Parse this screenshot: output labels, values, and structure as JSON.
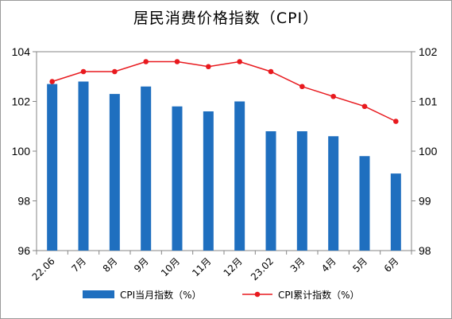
{
  "chart_data": {
    "type": "bar+line",
    "title": "居民消费价格指数（CPI）",
    "categories": [
      "22.06",
      "7月",
      "8月",
      "9月",
      "10月",
      "11月",
      "12月",
      "23.02",
      "3月",
      "4月",
      "5月",
      "6月"
    ],
    "series": [
      {
        "name": "CPI当月指数（%）",
        "type": "bar",
        "axis": "left",
        "color": "#1f6fbf",
        "values": [
          102.7,
          102.8,
          102.3,
          102.6,
          101.8,
          101.6,
          102.0,
          100.8,
          100.8,
          100.6,
          99.8,
          99.1
        ]
      },
      {
        "name": "CPI累计指数（%）",
        "type": "line",
        "axis": "right",
        "color": "#e8191e",
        "values": [
          101.4,
          101.6,
          101.6,
          101.8,
          101.8,
          101.7,
          101.8,
          101.6,
          101.3,
          101.1,
          100.9,
          100.6
        ]
      }
    ],
    "y_left": {
      "min": 96,
      "max": 104,
      "ticks": [
        "96",
        "98",
        "100",
        "102",
        "104"
      ]
    },
    "y_right": {
      "min": 98,
      "max": 102,
      "ticks": [
        "98",
        "99",
        "100",
        "101",
        "102"
      ]
    },
    "grid": false,
    "legend": "bottom"
  }
}
